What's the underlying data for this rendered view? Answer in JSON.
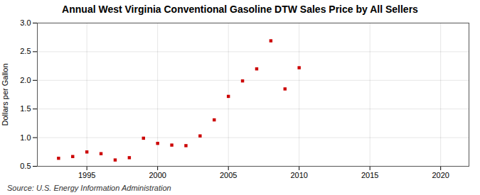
{
  "chart_data": {
    "type": "scatter",
    "title": "Annual West Virginia Conventional Gasoline DTW Sales Price by All Sellers",
    "ylabel": "Dollars per Gallon",
    "source": "Source: U.S. Energy Information Administration",
    "x": [
      1993,
      1994,
      1995,
      1996,
      1997,
      1998,
      1999,
      2000,
      2001,
      2002,
      2003,
      2004,
      2005,
      2006,
      2007,
      2008,
      2009,
      2010
    ],
    "values": [
      0.64,
      0.67,
      0.75,
      0.72,
      0.61,
      0.65,
      0.99,
      0.9,
      0.87,
      0.86,
      1.03,
      1.31,
      1.72,
      1.99,
      2.2,
      2.69,
      1.85,
      2.22
    ],
    "color": "#cc0000",
    "marker": "square",
    "xlim": [
      1991.5,
      2022
    ],
    "ylim": [
      0.5,
      3.0
    ],
    "xticks": [
      1995,
      2000,
      2005,
      2010,
      2015,
      2020
    ],
    "yticks": [
      0.5,
      {
        "value": 1.0,
        "label": "1.0"
      },
      1.5,
      {
        "value": 2.0,
        "label": "2.0"
      },
      2.5,
      {
        "value": 3.0,
        "label": "3.0"
      }
    ],
    "grid": true
  }
}
